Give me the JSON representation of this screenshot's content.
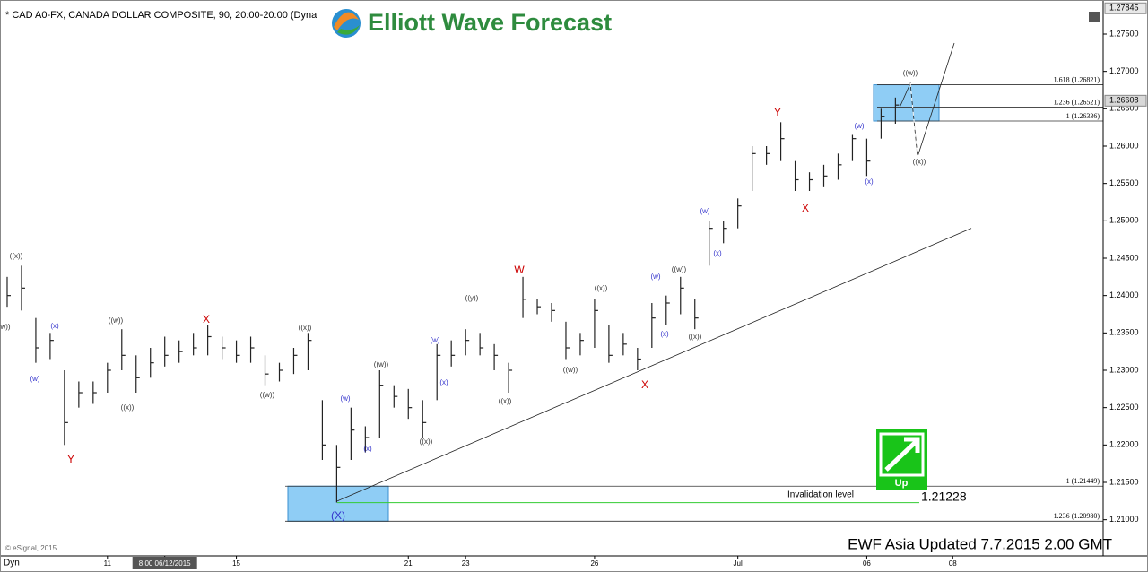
{
  "chart_data": {
    "type": "hlc",
    "title": "* CAD A0-FX, CANADA DOLLAR COMPOSITE, 90, 20:00-20:00 (Dyna",
    "brand": "Elliott Wave Forecast",
    "footer": "EWF Asia Updated 7.7.2015 2.00 GMT",
    "copyright": "© eSignal, 2015",
    "corner": "Dyn",
    "signal": "Up",
    "bar_color": "#222222",
    "categories": [
      null,
      null,
      null,
      null,
      null,
      null,
      null,
      "11",
      null,
      null,
      null,
      "8:00 06/12/2015",
      null,
      null,
      null,
      null,
      "15",
      null,
      null,
      null,
      null,
      null,
      null,
      null,
      null,
      null,
      null,
      null,
      "21",
      null,
      null,
      null,
      "23",
      null,
      null,
      null,
      null,
      null,
      null,
      null,
      null,
      "26",
      null,
      null,
      null,
      null,
      null,
      null,
      null,
      null,
      null,
      "Jul",
      null,
      null,
      null,
      null,
      null,
      null,
      null,
      null,
      "06",
      null,
      null,
      null,
      null,
      null,
      "08",
      null,
      null,
      null,
      null,
      null,
      null,
      null,
      null,
      null,
      null
    ],
    "high": [
      1.2425,
      1.244,
      1.237,
      1.235,
      1.23,
      1.2285,
      1.2285,
      1.231,
      1.2355,
      1.232,
      1.233,
      1.2345,
      1.234,
      1.235,
      1.236,
      1.2345,
      1.234,
      1.2345,
      1.232,
      1.231,
      1.233,
      1.235,
      1.226,
      1.22,
      1.225,
      1.2225,
      1.23,
      1.228,
      1.2275,
      1.226,
      1.2335,
      1.234,
      1.2355,
      1.235,
      1.2335,
      1.231,
      1.2425,
      1.2395,
      1.239,
      1.2365,
      1.235,
      1.2395,
      1.236,
      1.235,
      1.233,
      1.239,
      1.24,
      1.2425,
      1.2395,
      1.25,
      1.25,
      1.253,
      1.26,
      1.26,
      1.2632,
      1.258,
      1.2565,
      1.2575,
      1.259,
      1.2615,
      1.261,
      1.265,
      1.2665,
      null,
      null,
      null,
      null,
      null,
      null,
      null,
      null,
      null,
      null,
      null,
      null,
      null,
      null
    ],
    "low": [
      1.2385,
      1.238,
      1.231,
      1.2315,
      1.22,
      1.225,
      1.2255,
      1.227,
      1.23,
      1.227,
      1.229,
      1.2305,
      1.231,
      1.232,
      1.232,
      1.2315,
      1.231,
      1.231,
      1.228,
      1.2285,
      1.2295,
      1.23,
      1.218,
      1.2123,
      1.218,
      1.219,
      1.221,
      1.225,
      1.2235,
      1.221,
      1.226,
      1.2305,
      1.232,
      1.232,
      1.23,
      1.227,
      1.237,
      1.2375,
      1.2365,
      1.2315,
      1.232,
      1.233,
      1.231,
      1.232,
      1.23,
      1.233,
      1.236,
      1.2375,
      1.2355,
      1.244,
      1.247,
      1.249,
      1.254,
      1.2575,
      1.258,
      1.254,
      1.254,
      1.2545,
      1.2555,
      1.258,
      1.256,
      1.261,
      1.263,
      null,
      null,
      null,
      null,
      null,
      null,
      null,
      null,
      null,
      null,
      null,
      null,
      null,
      null
    ],
    "close": [
      1.24,
      1.241,
      1.233,
      1.234,
      1.223,
      1.227,
      1.227,
      1.23,
      1.232,
      1.229,
      1.231,
      1.232,
      1.2325,
      1.233,
      1.2345,
      1.233,
      1.232,
      1.233,
      1.2295,
      1.23,
      1.232,
      1.234,
      1.22,
      1.217,
      1.222,
      1.221,
      1.228,
      1.2265,
      1.225,
      1.223,
      1.232,
      1.232,
      1.234,
      1.233,
      1.232,
      1.23,
      1.2395,
      1.2385,
      1.238,
      1.233,
      1.234,
      1.238,
      1.232,
      1.2335,
      1.2315,
      1.237,
      1.239,
      1.241,
      1.237,
      1.249,
      1.249,
      1.252,
      1.259,
      1.259,
      1.261,
      1.2555,
      1.2555,
      1.256,
      1.2575,
      1.261,
      1.258,
      1.264,
      1.2655,
      null,
      null,
      null,
      null,
      null,
      null,
      null,
      null,
      null,
      null,
      null,
      null,
      null,
      null
    ],
    "ylim": [
      1.2066,
      1.2786
    ],
    "yticks": [
      {
        "value": 1.21,
        "label": "1.21000"
      },
      {
        "value": 1.215,
        "label": "1.21500"
      },
      {
        "value": 1.22,
        "label": "1.22000"
      },
      {
        "value": 1.225,
        "label": "1.22500"
      },
      {
        "value": 1.23,
        "label": "1.23000"
      },
      {
        "value": 1.235,
        "label": "1.23500"
      },
      {
        "value": 1.24,
        "label": "1.24000"
      },
      {
        "value": 1.245,
        "label": "1.24500"
      },
      {
        "value": 1.25,
        "label": "1.25000"
      },
      {
        "value": 1.255,
        "label": "1.25500"
      },
      {
        "value": 1.26,
        "label": "1.26000"
      },
      {
        "value": 1.265,
        "label": "1.26500"
      },
      {
        "value": 1.27,
        "label": "1.27000"
      },
      {
        "value": 1.275,
        "label": "1.27500"
      }
    ],
    "price_tags": [
      {
        "value": 1.27845,
        "label": "1.27845"
      },
      {
        "value": 1.26608,
        "label": "1.26608"
      }
    ],
    "fib_levels": [
      {
        "value": 1.26821,
        "label": "1.618 (1.26821)"
      },
      {
        "value": 1.26521,
        "label": "1.236 (1.26521)"
      },
      {
        "value": 1.26336,
        "label": "1 (1.26336)"
      },
      {
        "value": 1.21449,
        "label": "1 (1.21449)"
      },
      {
        "value": 1.2098,
        "label": "1.236 (1.20980)"
      }
    ],
    "invalidation": {
      "text": "Invalidation level",
      "value": 1.21228,
      "label": "1.21228"
    },
    "wave_labels": [
      {
        "text": "((x))",
        "color": "#333333"
      },
      {
        "text": "w))",
        "color": "#333333"
      },
      {
        "text": "(x)",
        "color": "#3333cc"
      },
      {
        "text": "(w)",
        "color": "#3333cc"
      },
      {
        "text": "Y",
        "color": "#cc0000"
      },
      {
        "text": "((w))",
        "color": "#333333"
      },
      {
        "text": "((x))",
        "color": "#333333"
      },
      {
        "text": "X",
        "color": "#cc0000"
      },
      {
        "text": "((w))",
        "color": "#333333"
      },
      {
        "text": "((x))",
        "color": "#333333"
      },
      {
        "text": "(w)",
        "color": "#3333cc"
      },
      {
        "text": "(x)",
        "color": "#3333cc"
      },
      {
        "text": "((w))",
        "color": "#333333"
      },
      {
        "text": "((x))",
        "color": "#333333"
      },
      {
        "text": "(X)",
        "color": "#3333cc"
      },
      {
        "text": "(w)",
        "color": "#3333cc"
      },
      {
        "text": "(x)",
        "color": "#3333cc"
      },
      {
        "text": "((y))",
        "color": "#333333"
      },
      {
        "text": "((x))",
        "color": "#333333"
      },
      {
        "text": "W",
        "color": "#cc0000"
      },
      {
        "text": "((w))",
        "color": "#333333"
      },
      {
        "text": "((x))",
        "color": "#333333"
      },
      {
        "text": "X",
        "color": "#cc0000"
      },
      {
        "text": "(w)",
        "color": "#3333cc"
      },
      {
        "text": "((w))",
        "color": "#333333"
      },
      {
        "text": "(x)",
        "color": "#3333cc"
      },
      {
        "text": "((x))",
        "color": "#333333"
      },
      {
        "text": "(w)",
        "color": "#3333cc"
      },
      {
        "text": "(x)",
        "color": "#3333cc"
      },
      {
        "text": "Y",
        "color": "#cc0000"
      },
      {
        "text": "X",
        "color": "#cc0000"
      },
      {
        "text": "(w)",
        "color": "#3333cc"
      },
      {
        "text": "(x)",
        "color": "#3333cc"
      },
      {
        "text": "((w))",
        "color": "#333333"
      },
      {
        "text": "((x))",
        "color": "#333333"
      }
    ]
  }
}
